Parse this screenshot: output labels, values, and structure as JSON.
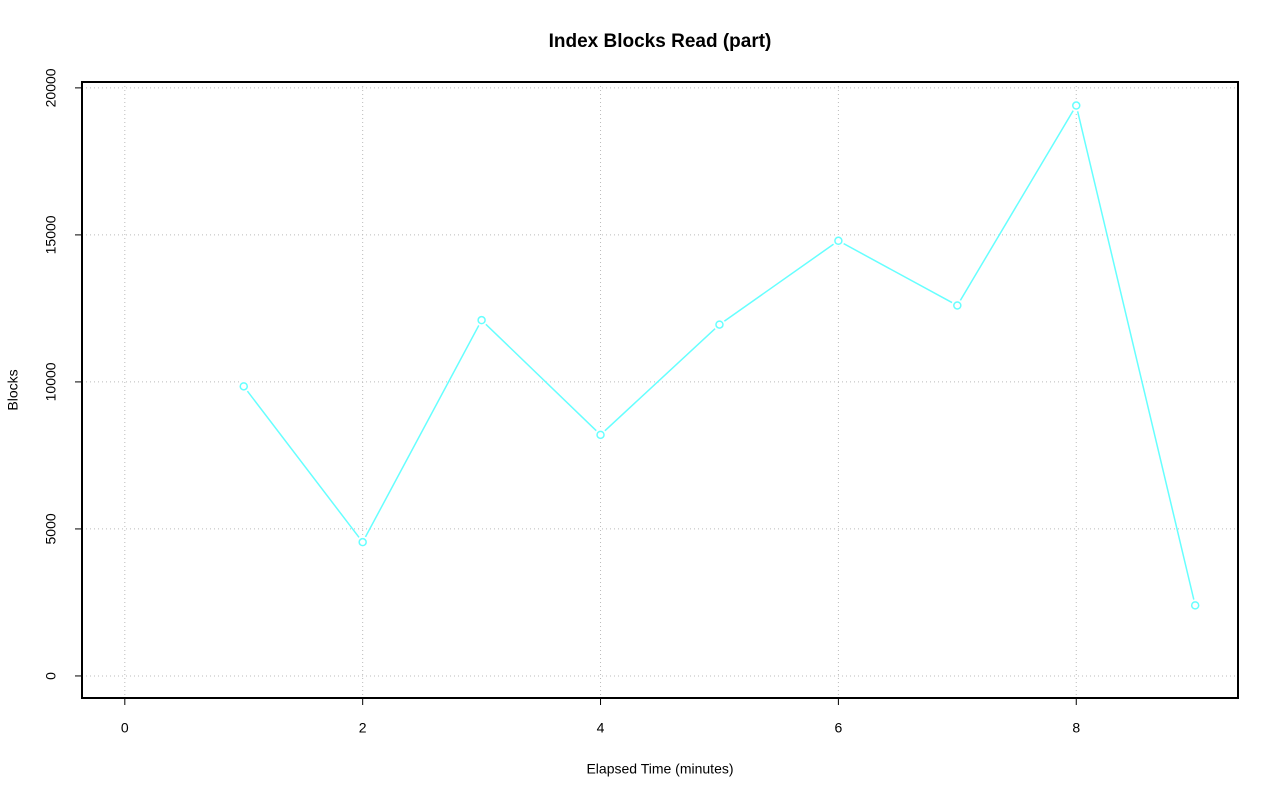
{
  "chart_data": {
    "type": "line",
    "title": "Index Blocks Read (part)",
    "x_label": "Elapsed Time (minutes)",
    "y_label": "Blocks",
    "x": [
      1,
      2,
      3,
      4,
      5,
      6,
      7,
      8,
      9
    ],
    "series": [
      {
        "color": "#66ffff",
        "values": [
          9850,
          4550,
          12100,
          8200,
          11950,
          14800,
          12600,
          19400,
          2400
        ]
      }
    ],
    "xlim": [
      -0.36,
      9.36
    ],
    "xticks": [
      0,
      2,
      4,
      6,
      8
    ],
    "ylim": [
      -750,
      20200
    ],
    "yticks": [
      0,
      5000,
      10000,
      15000,
      20000
    ],
    "grid": true
  }
}
